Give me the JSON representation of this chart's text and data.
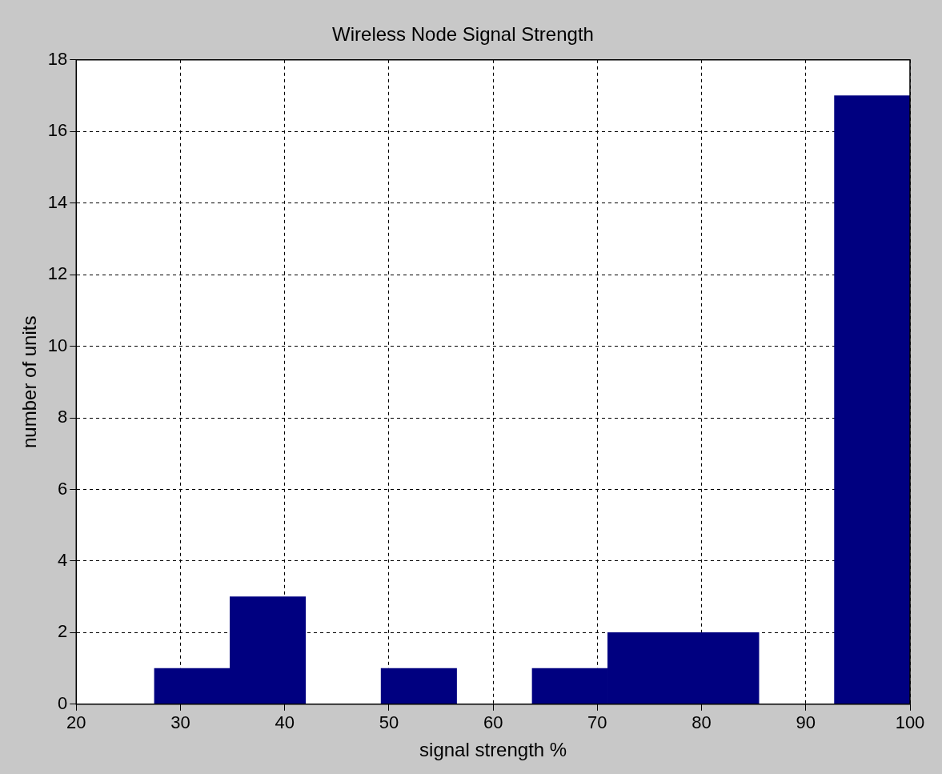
{
  "chart_data": {
    "type": "histogram",
    "title": "Wireless Node Signal Strength",
    "xlabel": "signal strength %",
    "ylabel": "number of units",
    "bins": [
      27.5,
      34.75,
      42,
      49.25,
      56.5,
      63.75,
      71,
      78.25,
      85.5,
      92.75,
      100
    ],
    "values": [
      1,
      3,
      0,
      1,
      0,
      1,
      2,
      2,
      0,
      17
    ],
    "color": "#000080",
    "xlim": [
      20,
      100
    ],
    "xticks": [
      20,
      30,
      40,
      50,
      60,
      70,
      80,
      90,
      100
    ],
    "ylim": [
      0,
      18
    ],
    "yticks": [
      0,
      2,
      4,
      6,
      8,
      10,
      12,
      14,
      16,
      18
    ],
    "grid": true,
    "legend": false
  }
}
